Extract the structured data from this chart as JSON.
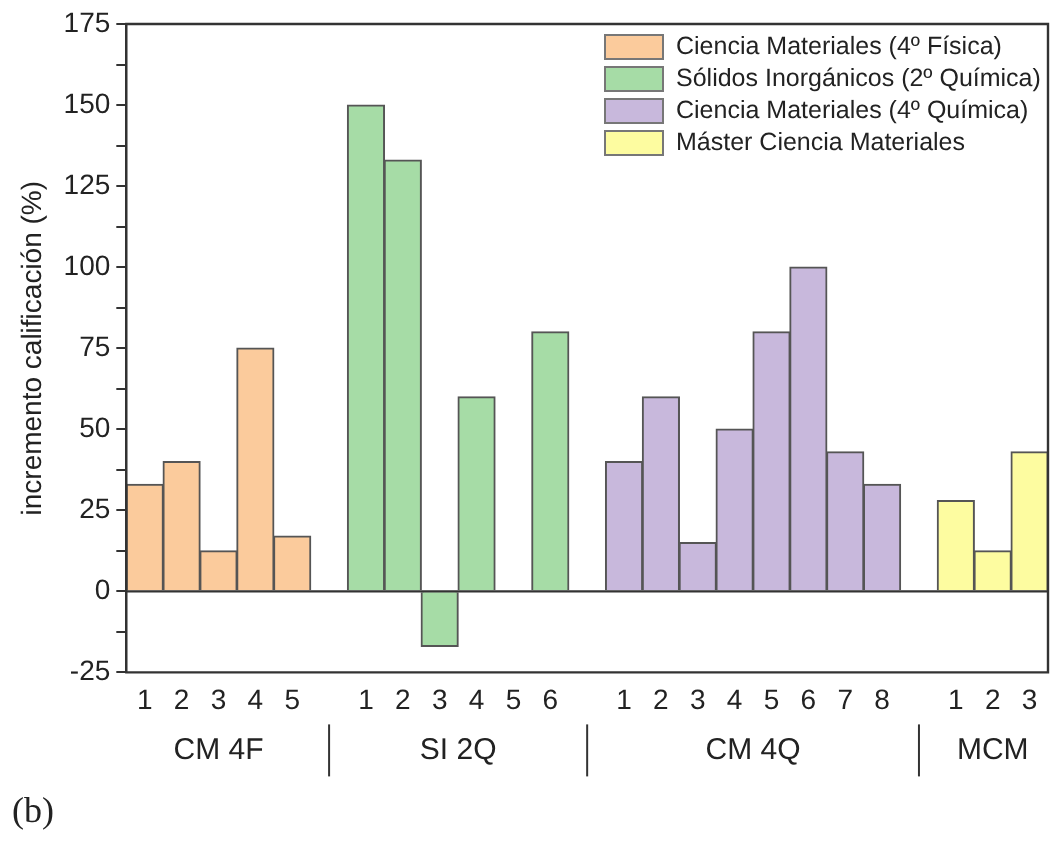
{
  "chart_data": {
    "type": "bar",
    "ylabel": "incremento calificación (%)",
    "categories": [
      "1",
      "2",
      "3",
      "4",
      "5",
      null,
      "1",
      "2",
      "3",
      "4",
      "5",
      "6",
      null,
      "1",
      "2",
      "3",
      "4",
      "5",
      "6",
      "7",
      "8",
      null,
      "1",
      "2",
      "3"
    ],
    "series": [
      {
        "name": "Ciencia Materiales (4º Física)",
        "color": "#fbcb9c",
        "values": [
          33,
          40,
          12.5,
          75,
          17,
          null,
          null,
          null,
          null,
          null,
          null,
          null,
          null,
          null,
          null,
          null,
          null,
          null,
          null,
          null,
          null,
          null,
          null,
          null,
          null
        ]
      },
      {
        "name": "Sólidos Inorgánicos (2º Química)",
        "color": "#a6dca6",
        "values": [
          null,
          null,
          null,
          null,
          null,
          null,
          150,
          133,
          -17,
          60,
          null,
          80,
          null,
          null,
          null,
          null,
          null,
          null,
          null,
          null,
          null,
          null,
          null,
          null,
          null
        ]
      },
      {
        "name": "Ciencia Materiales (4º Química)",
        "color": "#c8b8dc",
        "values": [
          null,
          null,
          null,
          null,
          null,
          null,
          null,
          null,
          null,
          null,
          null,
          null,
          null,
          40,
          60,
          15,
          50,
          80,
          100,
          43,
          33,
          null,
          null,
          null,
          null
        ]
      },
      {
        "name": "Máster Ciencia Materiales",
        "color": "#fdfca0",
        "values": [
          null,
          null,
          null,
          null,
          null,
          null,
          null,
          null,
          null,
          null,
          null,
          null,
          null,
          null,
          null,
          null,
          null,
          null,
          null,
          null,
          null,
          null,
          28,
          12.5,
          43
        ]
      }
    ],
    "ylim": [
      -25,
      175
    ],
    "yticks": [
      -25,
      {
        "value": -12.5,
        "label": null
      },
      0,
      {
        "value": 12.5,
        "label": null
      },
      25,
      {
        "value": 37.5,
        "label": null
      },
      50,
      {
        "value": 62.5,
        "label": null
      },
      75,
      {
        "value": 87.5,
        "label": null
      },
      100,
      {
        "value": 112.5,
        "label": null
      },
      125,
      {
        "value": 137.5,
        "label": null
      },
      150,
      {
        "value": 162.5,
        "label": null
      },
      175
    ],
    "ref_lines": [
      {
        "axis": "y",
        "value": 0,
        "color": "#333333"
      }
    ],
    "grid": false,
    "legend": "top right",
    "annotations": [
      "CM 4F",
      "SI 2Q",
      "CM 4Q",
      "MCM",
      "(b)"
    ]
  }
}
